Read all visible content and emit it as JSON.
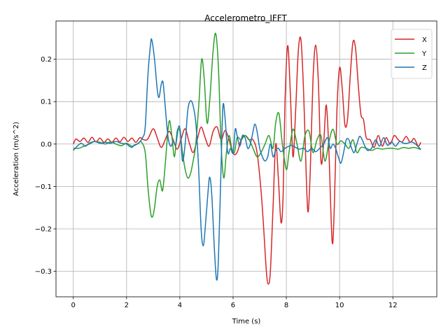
{
  "chart_data": {
    "type": "line",
    "title": "Accelerometro_IFFT",
    "xlabel": "Time (s)",
    "ylabel": "Acceleration (m/s^2)",
    "xlim": [
      -0.65,
      13.65
    ],
    "ylim": [
      -0.36,
      0.29
    ],
    "xticks": [
      0,
      2,
      4,
      6,
      8,
      10,
      12
    ],
    "yticks": [
      -0.3,
      -0.2,
      -0.1,
      0.0,
      0.1,
      0.2
    ],
    "ytick_labels": [
      "−0.3",
      "−0.2",
      "−0.1",
      "0.0",
      "0.1",
      "0.2"
    ],
    "grid": true,
    "legend_position": "top-right",
    "series": [
      {
        "name": "X",
        "color": "#d62728",
        "points": [
          [
            0,
            0.0
          ],
          [
            0.1,
            0.012
          ],
          [
            0.25,
            0.006
          ],
          [
            0.4,
            0.014
          ],
          [
            0.55,
            0.004
          ],
          [
            0.7,
            0.016
          ],
          [
            0.85,
            0.005
          ],
          [
            1.0,
            0.014
          ],
          [
            1.15,
            0.004
          ],
          [
            1.3,
            0.012
          ],
          [
            1.45,
            0.004
          ],
          [
            1.6,
            0.014
          ],
          [
            1.75,
            0.005
          ],
          [
            1.9,
            0.016
          ],
          [
            2.05,
            0.006
          ],
          [
            2.2,
            0.014
          ],
          [
            2.35,
            0.004
          ],
          [
            2.5,
            0.015
          ],
          [
            2.65,
            0.01
          ],
          [
            2.8,
            0.012
          ],
          [
            3.0,
            0.036
          ],
          [
            3.15,
            0.015
          ],
          [
            3.3,
            -0.008
          ],
          [
            3.45,
            0.01
          ],
          [
            3.6,
            0.03
          ],
          [
            3.75,
            0.01
          ],
          [
            3.9,
            -0.012
          ],
          [
            4.05,
            0.012
          ],
          [
            4.2,
            0.036
          ],
          [
            4.35,
            0.004
          ],
          [
            4.5,
            -0.02
          ],
          [
            4.65,
            0.01
          ],
          [
            4.8,
            0.04
          ],
          [
            4.95,
            0.015
          ],
          [
            5.1,
            -0.005
          ],
          [
            5.25,
            0.03
          ],
          [
            5.4,
            0.04
          ],
          [
            5.55,
            0.01
          ],
          [
            5.7,
            0.032
          ],
          [
            5.85,
            0.01
          ],
          [
            6.0,
            -0.022
          ],
          [
            6.15,
            -0.02
          ],
          [
            6.3,
            0.01
          ],
          [
            6.45,
            0.02
          ],
          [
            6.6,
            0.01
          ],
          [
            6.75,
            0.01
          ],
          [
            6.9,
            -0.02
          ],
          [
            7.05,
            -0.11
          ],
          [
            7.15,
            -0.2
          ],
          [
            7.25,
            -0.3
          ],
          [
            7.32,
            -0.33
          ],
          [
            7.4,
            -0.3
          ],
          [
            7.5,
            -0.15
          ],
          [
            7.6,
            0.0
          ],
          [
            7.7,
            -0.08
          ],
          [
            7.8,
            -0.185
          ],
          [
            7.88,
            -0.12
          ],
          [
            7.95,
            0.1
          ],
          [
            8.05,
            0.232
          ],
          [
            8.15,
            0.12
          ],
          [
            8.25,
            -0.03
          ],
          [
            8.35,
            0.08
          ],
          [
            8.45,
            0.22
          ],
          [
            8.55,
            0.245
          ],
          [
            8.65,
            0.12
          ],
          [
            8.75,
            -0.08
          ],
          [
            8.82,
            -0.16
          ],
          [
            8.9,
            -0.06
          ],
          [
            9.0,
            0.15
          ],
          [
            9.1,
            0.233
          ],
          [
            9.2,
            0.15
          ],
          [
            9.3,
            -0.04
          ],
          [
            9.4,
            0.0
          ],
          [
            9.5,
            0.092
          ],
          [
            9.6,
            -0.02
          ],
          [
            9.72,
            -0.23
          ],
          [
            9.8,
            -0.15
          ],
          [
            9.9,
            0.08
          ],
          [
            10.0,
            0.18
          ],
          [
            10.1,
            0.13
          ],
          [
            10.2,
            0.045
          ],
          [
            10.3,
            0.06
          ],
          [
            10.4,
            0.16
          ],
          [
            10.5,
            0.24
          ],
          [
            10.6,
            0.225
          ],
          [
            10.7,
            0.14
          ],
          [
            10.8,
            0.07
          ],
          [
            10.9,
            0.057
          ],
          [
            11.0,
            0.015
          ],
          [
            11.15,
            0.01
          ],
          [
            11.3,
            -0.008
          ],
          [
            11.45,
            0.02
          ],
          [
            11.6,
            -0.005
          ],
          [
            11.75,
            0.015
          ],
          [
            11.9,
            0.0
          ],
          [
            12.05,
            0.02
          ],
          [
            12.2,
            0.01
          ],
          [
            12.35,
            0.005
          ],
          [
            12.5,
            0.018
          ],
          [
            12.65,
            0.004
          ],
          [
            12.8,
            0.013
          ],
          [
            12.95,
            -0.005
          ],
          [
            13.05,
            0.004
          ]
        ]
      },
      {
        "name": "Y",
        "color": "#2ca02c",
        "points": [
          [
            0,
            -0.01
          ],
          [
            0.2,
            -0.01
          ],
          [
            0.4,
            -0.005
          ],
          [
            0.6,
            0.0
          ],
          [
            0.8,
            0.006
          ],
          [
            1.0,
            0.004
          ],
          [
            1.2,
            0.0
          ],
          [
            1.4,
            0.005
          ],
          [
            1.6,
            0.0
          ],
          [
            1.8,
            -0.004
          ],
          [
            2.0,
            0.002
          ],
          [
            2.2,
            -0.005
          ],
          [
            2.4,
            0.0
          ],
          [
            2.55,
            0.005
          ],
          [
            2.7,
            -0.02
          ],
          [
            2.8,
            -0.1
          ],
          [
            2.9,
            -0.16
          ],
          [
            2.97,
            -0.172
          ],
          [
            3.05,
            -0.15
          ],
          [
            3.15,
            -0.1
          ],
          [
            3.25,
            -0.085
          ],
          [
            3.35,
            -0.11
          ],
          [
            3.45,
            -0.05
          ],
          [
            3.55,
            0.03
          ],
          [
            3.62,
            0.055
          ],
          [
            3.7,
            0.02
          ],
          [
            3.8,
            -0.03
          ],
          [
            3.9,
            0.03
          ],
          [
            4.0,
            0.03
          ],
          [
            4.1,
            -0.02
          ],
          [
            4.2,
            -0.06
          ],
          [
            4.3,
            -0.08
          ],
          [
            4.4,
            -0.07
          ],
          [
            4.5,
            -0.04
          ],
          [
            4.6,
            0.0
          ],
          [
            4.72,
            0.1
          ],
          [
            4.82,
            0.2
          ],
          [
            4.92,
            0.15
          ],
          [
            5.02,
            0.05
          ],
          [
            5.12,
            0.1
          ],
          [
            5.25,
            0.22
          ],
          [
            5.35,
            0.26
          ],
          [
            5.45,
            0.18
          ],
          [
            5.55,
            0.0
          ],
          [
            5.65,
            -0.08
          ],
          [
            5.75,
            -0.02
          ],
          [
            5.85,
            0.02
          ],
          [
            5.95,
            -0.01
          ],
          [
            6.05,
            -0.02
          ],
          [
            6.15,
            0.015
          ],
          [
            6.3,
            0.01
          ],
          [
            6.45,
            0.02
          ],
          [
            6.6,
            0.01
          ],
          [
            6.75,
            -0.01
          ],
          [
            6.9,
            -0.03
          ],
          [
            7.05,
            -0.02
          ],
          [
            7.2,
            0.0
          ],
          [
            7.35,
            0.02
          ],
          [
            7.5,
            -0.01
          ],
          [
            7.6,
            0.05
          ],
          [
            7.72,
            0.072
          ],
          [
            7.85,
            0.0
          ],
          [
            8.0,
            -0.06
          ],
          [
            8.1,
            -0.02
          ],
          [
            8.25,
            0.035
          ],
          [
            8.4,
            0.0
          ],
          [
            8.55,
            -0.04
          ],
          [
            8.7,
            0.02
          ],
          [
            8.85,
            0.03
          ],
          [
            9.0,
            -0.02
          ],
          [
            9.15,
            0.01
          ],
          [
            9.3,
            0.02
          ],
          [
            9.45,
            -0.04
          ],
          [
            9.6,
            0.005
          ],
          [
            9.75,
            0.035
          ],
          [
            9.9,
            0.0
          ],
          [
            10.05,
            0.008
          ],
          [
            10.2,
            0.0
          ],
          [
            10.35,
            -0.01
          ],
          [
            10.5,
            0.01
          ],
          [
            10.65,
            -0.02
          ],
          [
            10.8,
            -0.008
          ],
          [
            11.0,
            -0.01
          ],
          [
            11.2,
            -0.015
          ],
          [
            11.4,
            -0.01
          ],
          [
            11.6,
            -0.012
          ],
          [
            11.8,
            -0.01
          ],
          [
            12.0,
            -0.01
          ],
          [
            12.2,
            -0.012
          ],
          [
            12.4,
            -0.008
          ],
          [
            12.6,
            -0.01
          ],
          [
            12.8,
            -0.008
          ],
          [
            13.05,
            -0.013
          ]
        ]
      },
      {
        "name": "Z",
        "color": "#1f77b4",
        "points": [
          [
            0,
            -0.015
          ],
          [
            0.15,
            -0.005
          ],
          [
            0.3,
            0.002
          ],
          [
            0.45,
            -0.005
          ],
          [
            0.6,
            0.002
          ],
          [
            0.8,
            0.006
          ],
          [
            1.0,
            0.002
          ],
          [
            1.2,
            0.004
          ],
          [
            1.4,
            0.002
          ],
          [
            1.6,
            0.006
          ],
          [
            1.8,
            0.002
          ],
          [
            2.0,
            0.0
          ],
          [
            2.1,
            -0.005
          ],
          [
            2.2,
            -0.008
          ],
          [
            2.3,
            -0.002
          ],
          [
            2.45,
            0.002
          ],
          [
            2.6,
            0.015
          ],
          [
            2.7,
            0.04
          ],
          [
            2.8,
            0.16
          ],
          [
            2.9,
            0.235
          ],
          [
            2.95,
            0.245
          ],
          [
            3.05,
            0.2
          ],
          [
            3.15,
            0.13
          ],
          [
            3.22,
            0.11
          ],
          [
            3.3,
            0.14
          ],
          [
            3.37,
            0.145
          ],
          [
            3.45,
            0.09
          ],
          [
            3.55,
            0.02
          ],
          [
            3.65,
            -0.005
          ],
          [
            3.75,
            0.005
          ],
          [
            3.85,
            0.0
          ],
          [
            3.95,
            0.04
          ],
          [
            4.02,
            0.03
          ],
          [
            4.1,
            -0.04
          ],
          [
            4.2,
            0.0
          ],
          [
            4.3,
            0.08
          ],
          [
            4.4,
            0.102
          ],
          [
            4.5,
            0.09
          ],
          [
            4.6,
            0.05
          ],
          [
            4.7,
            -0.05
          ],
          [
            4.8,
            -0.2
          ],
          [
            4.88,
            -0.24
          ],
          [
            4.95,
            -0.2
          ],
          [
            5.05,
            -0.12
          ],
          [
            5.12,
            -0.078
          ],
          [
            5.2,
            -0.12
          ],
          [
            5.3,
            -0.25
          ],
          [
            5.38,
            -0.32
          ],
          [
            5.45,
            -0.27
          ],
          [
            5.55,
            -0.05
          ],
          [
            5.62,
            0.09
          ],
          [
            5.7,
            0.06
          ],
          [
            5.8,
            -0.02
          ],
          [
            5.9,
            -0.01
          ],
          [
            6.0,
            -0.02
          ],
          [
            6.08,
            0.035
          ],
          [
            6.15,
            0.02
          ],
          [
            6.25,
            -0.005
          ],
          [
            6.35,
            0.02
          ],
          [
            6.45,
            0.015
          ],
          [
            6.55,
            -0.01
          ],
          [
            6.65,
            0.0
          ],
          [
            6.75,
            0.03
          ],
          [
            6.82,
            0.047
          ],
          [
            6.9,
            0.03
          ],
          [
            7.0,
            -0.01
          ],
          [
            7.1,
            -0.03
          ],
          [
            7.2,
            -0.04
          ],
          [
            7.3,
            -0.03
          ],
          [
            7.4,
            0.0
          ],
          [
            7.5,
            -0.03
          ],
          [
            7.6,
            -0.015
          ],
          [
            7.7,
            -0.01
          ],
          [
            7.8,
            -0.018
          ],
          [
            7.95,
            -0.01
          ],
          [
            8.1,
            -0.005
          ],
          [
            8.2,
            -0.003
          ],
          [
            8.35,
            -0.008
          ],
          [
            8.5,
            -0.012
          ],
          [
            8.65,
            -0.01
          ],
          [
            8.8,
            -0.018
          ],
          [
            8.95,
            -0.01
          ],
          [
            9.1,
            -0.018
          ],
          [
            9.25,
            -0.01
          ],
          [
            9.4,
            0.0
          ],
          [
            9.55,
            0.015
          ],
          [
            9.65,
            -0.01
          ],
          [
            9.75,
            0.0
          ],
          [
            9.85,
            -0.01
          ],
          [
            9.95,
            -0.03
          ],
          [
            10.05,
            -0.045
          ],
          [
            10.15,
            -0.02
          ],
          [
            10.25,
            0.01
          ],
          [
            10.35,
            0.01
          ],
          [
            10.45,
            -0.01
          ],
          [
            10.55,
            -0.02
          ],
          [
            10.65,
            0.0
          ],
          [
            10.75,
            0.018
          ],
          [
            10.85,
            0.01
          ],
          [
            10.95,
            -0.005
          ],
          [
            11.05,
            -0.015
          ],
          [
            11.2,
            -0.01
          ],
          [
            11.35,
            0.01
          ],
          [
            11.5,
            -0.005
          ],
          [
            11.65,
            0.015
          ],
          [
            11.8,
            -0.003
          ],
          [
            11.95,
            0.005
          ],
          [
            12.1,
            -0.005
          ],
          [
            12.25,
            0.006
          ],
          [
            12.4,
            0.002
          ],
          [
            12.55,
            0.002
          ],
          [
            12.7,
            0.005
          ],
          [
            12.85,
            0.0
          ],
          [
            13.05,
            -0.013
          ]
        ]
      }
    ]
  }
}
